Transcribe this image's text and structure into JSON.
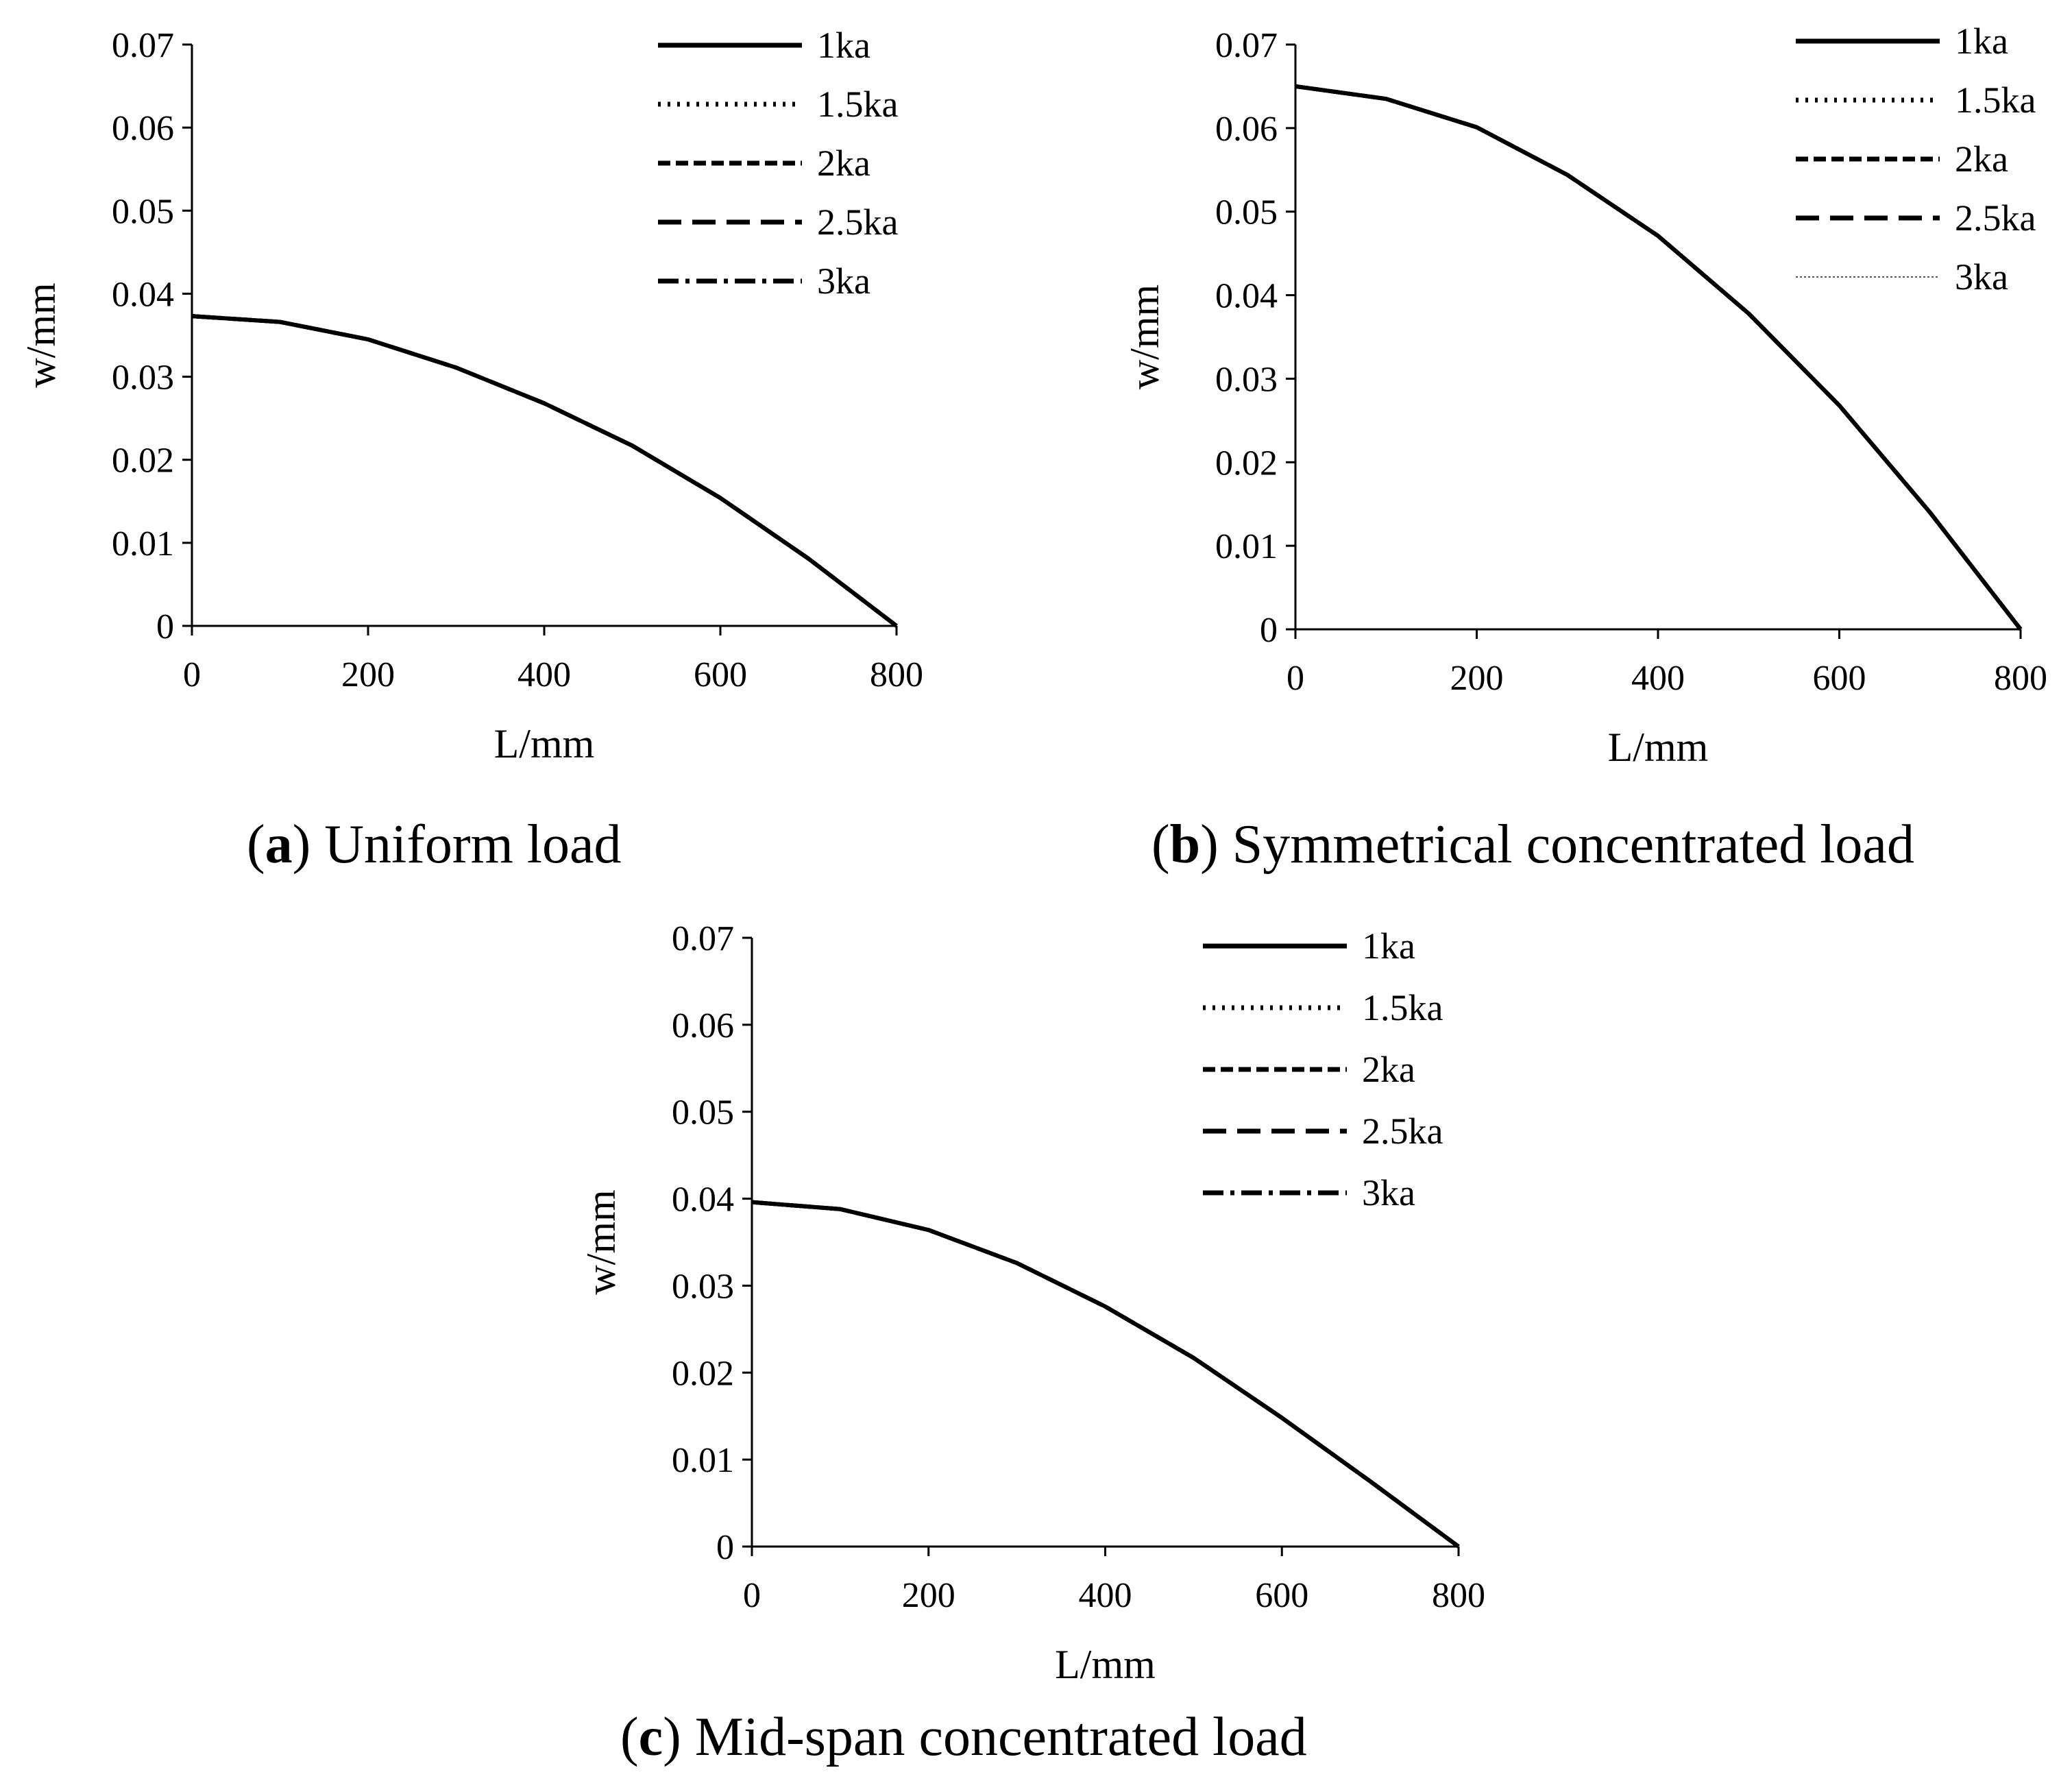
{
  "chart_data": [
    {
      "id": "a",
      "type": "line",
      "caption": {
        "letter": "a",
        "text": " Uniform load"
      },
      "xlabel": "L/mm",
      "ylabel": "w/mm",
      "xlim": [
        0,
        800
      ],
      "ylim": [
        0,
        0.07
      ],
      "xticks": [
        "0",
        "200",
        "400",
        "600",
        "800"
      ],
      "yticks": [
        "0",
        "0.01",
        "0.02",
        "0.03",
        "0.04",
        "0.05",
        "0.06",
        "0.07"
      ],
      "legend_position": "top-right",
      "series": [
        {
          "name": "1ka",
          "dash": "solid",
          "x": [
            0,
            100,
            200,
            300,
            400,
            500,
            600,
            700,
            800
          ],
          "y": [
            0.0373,
            0.0366,
            0.0345,
            0.0311,
            0.0268,
            0.0217,
            0.0154,
            0.0081,
            0.0
          ]
        },
        {
          "name": "1.5ka",
          "dash": "dotted",
          "x": [
            0,
            100,
            200,
            300,
            400,
            500,
            600,
            700,
            800
          ],
          "y": [
            0.0373,
            0.0366,
            0.0345,
            0.0311,
            0.0268,
            0.0217,
            0.0154,
            0.0081,
            0.0
          ]
        },
        {
          "name": "2ka",
          "dash": "short-dash",
          "x": [
            0,
            100,
            200,
            300,
            400,
            500,
            600,
            700,
            800
          ],
          "y": [
            0.0373,
            0.0366,
            0.0345,
            0.0311,
            0.0268,
            0.0217,
            0.0154,
            0.0081,
            0.0
          ]
        },
        {
          "name": "2.5ka",
          "dash": "long-dash",
          "x": [
            0,
            100,
            200,
            300,
            400,
            500,
            600,
            700,
            800
          ],
          "y": [
            0.0373,
            0.0366,
            0.0345,
            0.0311,
            0.0268,
            0.0217,
            0.0154,
            0.0081,
            0.0
          ]
        },
        {
          "name": "3ka",
          "dash": "dash-dot",
          "x": [
            0,
            100,
            200,
            300,
            400,
            500,
            600,
            700,
            800
          ],
          "y": [
            0.0373,
            0.0366,
            0.0345,
            0.0311,
            0.0268,
            0.0217,
            0.0154,
            0.0081,
            0.0
          ]
        }
      ]
    },
    {
      "id": "b",
      "type": "line",
      "caption": {
        "letter": "b",
        "text": " Symmetrical concentrated load"
      },
      "xlabel": "L/mm",
      "ylabel": "w/mm",
      "xlim": [
        0,
        800
      ],
      "ylim": [
        0,
        0.07
      ],
      "xticks": [
        "0",
        "200",
        "400",
        "600",
        "800"
      ],
      "yticks": [
        "0",
        "0.01",
        "0.02",
        "0.03",
        "0.04",
        "0.05",
        "0.06",
        "0.07"
      ],
      "legend_position": "top-right",
      "series": [
        {
          "name": "1ka",
          "dash": "solid",
          "x": [
            0,
            100,
            200,
            300,
            400,
            500,
            600,
            700,
            800
          ],
          "y": [
            0.065,
            0.0635,
            0.0601,
            0.0544,
            0.0471,
            0.0378,
            0.0268,
            0.014,
            0.0
          ]
        },
        {
          "name": "1.5ka",
          "dash": "dotted",
          "x": [
            0,
            100,
            200,
            300,
            400,
            500,
            600,
            700,
            800
          ],
          "y": [
            0.065,
            0.0635,
            0.0601,
            0.0544,
            0.0471,
            0.0378,
            0.0268,
            0.014,
            0.0
          ]
        },
        {
          "name": "2ka",
          "dash": "short-dash",
          "x": [
            0,
            100,
            200,
            300,
            400,
            500,
            600,
            700,
            800
          ],
          "y": [
            0.065,
            0.0635,
            0.0601,
            0.0544,
            0.0471,
            0.0378,
            0.0268,
            0.014,
            0.0
          ]
        },
        {
          "name": "2.5ka",
          "dash": "long-dash",
          "x": [
            0,
            100,
            200,
            300,
            400,
            500,
            600,
            700,
            800
          ],
          "y": [
            0.065,
            0.0635,
            0.0601,
            0.0544,
            0.0471,
            0.0378,
            0.0268,
            0.014,
            0.0
          ]
        },
        {
          "name": "3ka",
          "dash": "thin-dotted",
          "x": [
            0,
            100,
            200,
            300,
            400,
            500,
            600,
            700,
            800
          ],
          "y": [
            0.065,
            0.0635,
            0.0601,
            0.0544,
            0.0471,
            0.0378,
            0.0268,
            0.014,
            0.0
          ]
        }
      ]
    },
    {
      "id": "c",
      "type": "line",
      "caption": {
        "letter": "c",
        "text": " Mid-span concentrated load"
      },
      "xlabel": "L/mm",
      "ylabel": "w/mm",
      "xlim": [
        0,
        800
      ],
      "ylim": [
        0,
        0.07
      ],
      "xticks": [
        "0",
        "200",
        "400",
        "600",
        "800"
      ],
      "yticks": [
        "0",
        "0.01",
        "0.02",
        "0.03",
        "0.04",
        "0.05",
        "0.06",
        "0.07"
      ],
      "legend_position": "top-right",
      "series": [
        {
          "name": "1ka",
          "dash": "solid",
          "x": [
            0,
            100,
            200,
            300,
            400,
            500,
            600,
            700,
            800
          ],
          "y": [
            0.0396,
            0.0388,
            0.0364,
            0.0326,
            0.0276,
            0.0217,
            0.0148,
            0.0075,
            0.0
          ]
        },
        {
          "name": "1.5ka",
          "dash": "dotted",
          "x": [
            0,
            100,
            200,
            300,
            400,
            500,
            600,
            700,
            800
          ],
          "y": [
            0.0396,
            0.0388,
            0.0364,
            0.0326,
            0.0276,
            0.0217,
            0.0148,
            0.0075,
            0.0
          ]
        },
        {
          "name": "2ka",
          "dash": "short-dash",
          "x": [
            0,
            100,
            200,
            300,
            400,
            500,
            600,
            700,
            800
          ],
          "y": [
            0.0396,
            0.0388,
            0.0364,
            0.0326,
            0.0276,
            0.0217,
            0.0148,
            0.0075,
            0.0
          ]
        },
        {
          "name": "2.5ka",
          "dash": "long-dash",
          "x": [
            0,
            100,
            200,
            300,
            400,
            500,
            600,
            700,
            800
          ],
          "y": [
            0.0396,
            0.0388,
            0.0364,
            0.0326,
            0.0276,
            0.0217,
            0.0148,
            0.0075,
            0.0
          ]
        },
        {
          "name": "3ka",
          "dash": "dash-dot",
          "x": [
            0,
            100,
            200,
            300,
            400,
            500,
            600,
            700,
            800
          ],
          "y": [
            0.0396,
            0.0388,
            0.0364,
            0.0326,
            0.0276,
            0.0217,
            0.0148,
            0.0075,
            0.0
          ]
        }
      ]
    }
  ]
}
